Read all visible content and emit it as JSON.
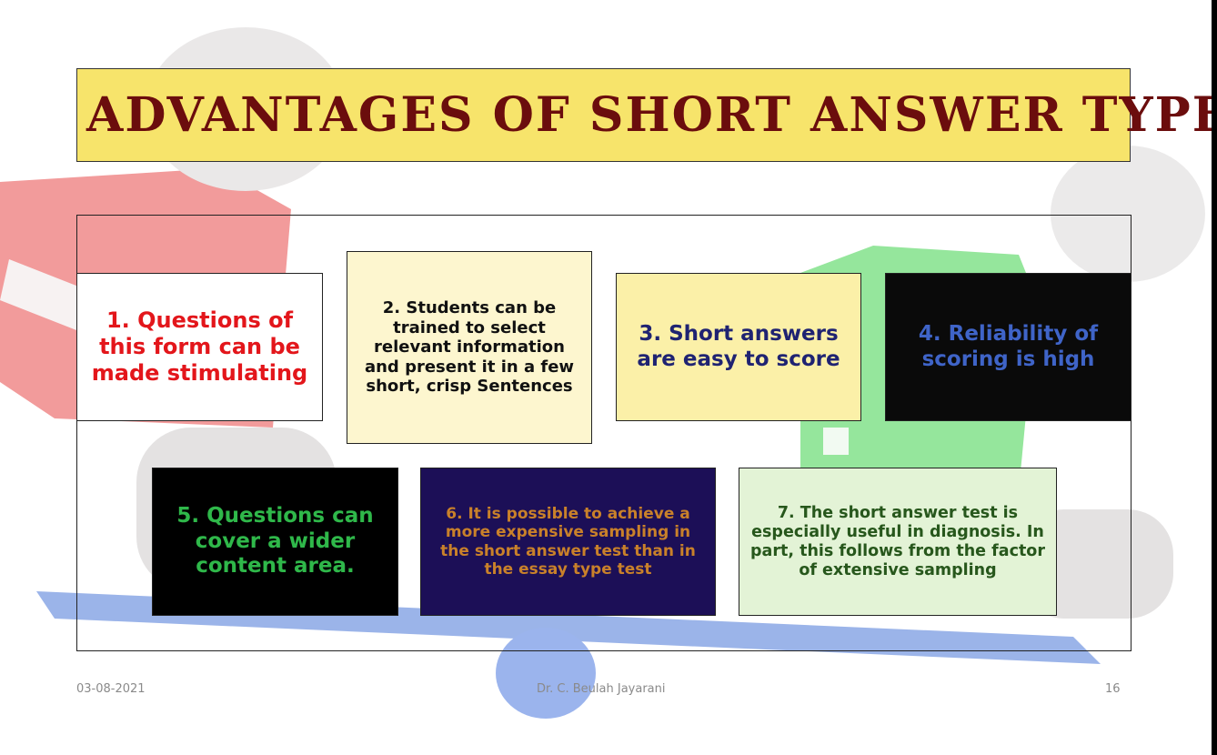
{
  "slide": {
    "title": "Advantages of Short Answer Type",
    "cards": [
      {
        "text": "1. Questions of this form can be made stimulating"
      },
      {
        "text": "2. Students can be trained to select relevant information and present it in a few short, crisp Sentences"
      },
      {
        "text": "3. Short answers are easy to score"
      },
      {
        "text": "4. Reliability of scoring is high"
      },
      {
        "text": "5. Questions can cover a wider content area."
      },
      {
        "text": "6. It is possible to achieve a more expensive sampling in the short answer test than in the essay type test"
      },
      {
        "text": "7. The short answer test is especially useful in diagnosis. In part, this follows from the factor of extensive sampling"
      }
    ]
  },
  "footer": {
    "date": "03-08-2021",
    "author": "Dr. C. Beulah Jayarani",
    "page_number": "16"
  },
  "colors": {
    "title_bg": "#f7e46b",
    "title_text": "#6b0d0d"
  }
}
